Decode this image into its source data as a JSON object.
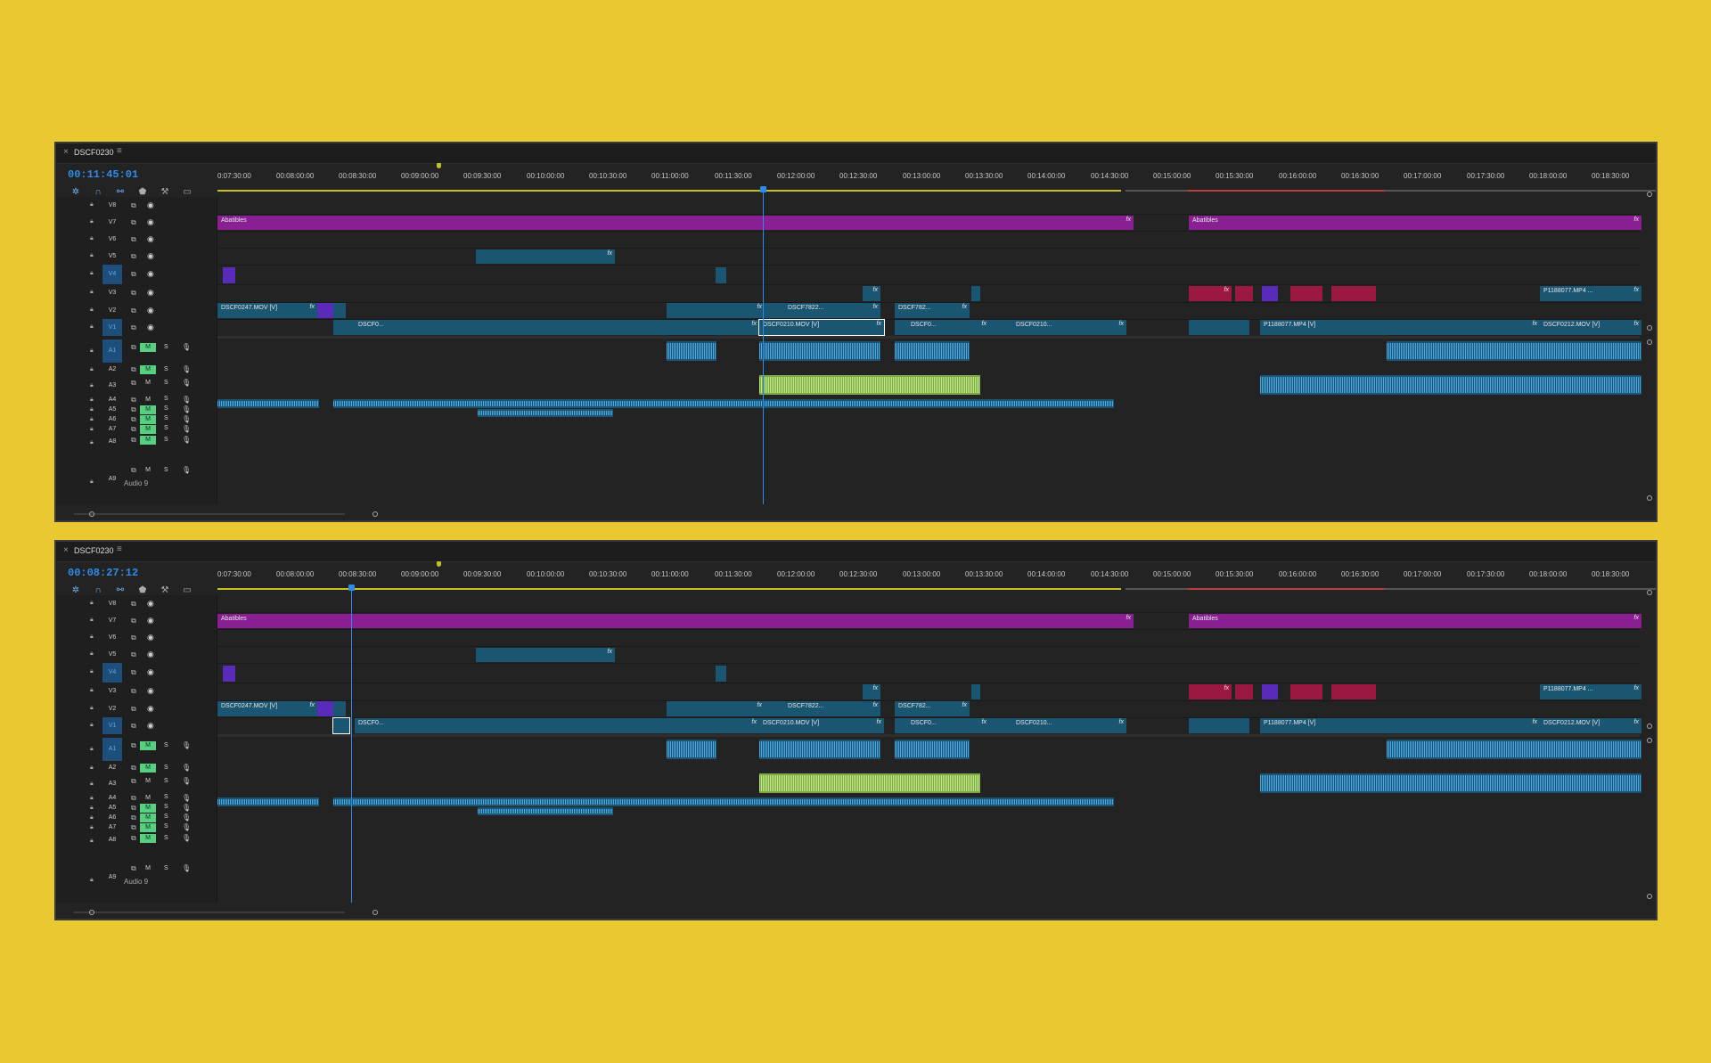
{
  "panels": [
    {
      "tab_title": "DSCF0230",
      "timecode": "00:11:45:01"
    },
    {
      "tab_title": "DSCF0230",
      "timecode": "00:08:27:12"
    }
  ],
  "ruler_ticks": [
    "0:07:30:00",
    "00:08:00:00",
    "00:08:30:00",
    "00:09:00:00",
    "00:09:30:00",
    "00:10:00:00",
    "00:10:30:00",
    "00:11:00:00",
    "00:11:30:00",
    "00:12:00:00",
    "00:12:30:00",
    "00:13:00:00",
    "00:13:30:00",
    "00:14:00:00",
    "00:14:30:00",
    "00:15:00:00",
    "00:15:30:00",
    "00:16:00:00",
    "00:16:30:00",
    "00:17:00:00",
    "00:17:30:00",
    "00:18:00:00",
    "00:18:30:00"
  ],
  "video_tracks": [
    "V8",
    "V7",
    "V6",
    "V5",
    "V4",
    "V3",
    "V2",
    "V1"
  ],
  "audio_tracks": [
    "A1",
    "A2",
    "A3",
    "A4",
    "A5",
    "A6",
    "A7",
    "A8",
    "A9"
  ],
  "audio9_label": "Audio 9",
  "button_labels": {
    "mute": "M",
    "solo": "S"
  },
  "clip_labels": {
    "abatibles": "Abatibles",
    "dscf0247": "DSCF0247.MOV [V]",
    "dscf7822": "DSCF7822...",
    "dscf782": "DSCF782...",
    "p1188077_short": "P1188077.MP4 ...",
    "dscf0_a": "DSCF0...",
    "dscf0210": "DSCF0210.MOV [V]",
    "dscf0_b": "DSCF0...",
    "dscf0210_short": "DSCF0210...",
    "p1188077_v": "P1188077.MP4 [V]",
    "dscf0212": "DSCF0212.MOV [V]"
  },
  "fx_label": "fx",
  "icons": [
    "wrench-icon",
    "marker-icon",
    "magnet-icon",
    "linked-selection-icon",
    "lock-icon",
    "eye-icon",
    "mic-icon",
    "sync-icon"
  ],
  "colors": {
    "background": "#e9c832",
    "timecode": "#2d8ceb",
    "adjustment_clip": "#8a1f93",
    "video_clip": "#1a5572",
    "mute_on": "#55d081"
  }
}
